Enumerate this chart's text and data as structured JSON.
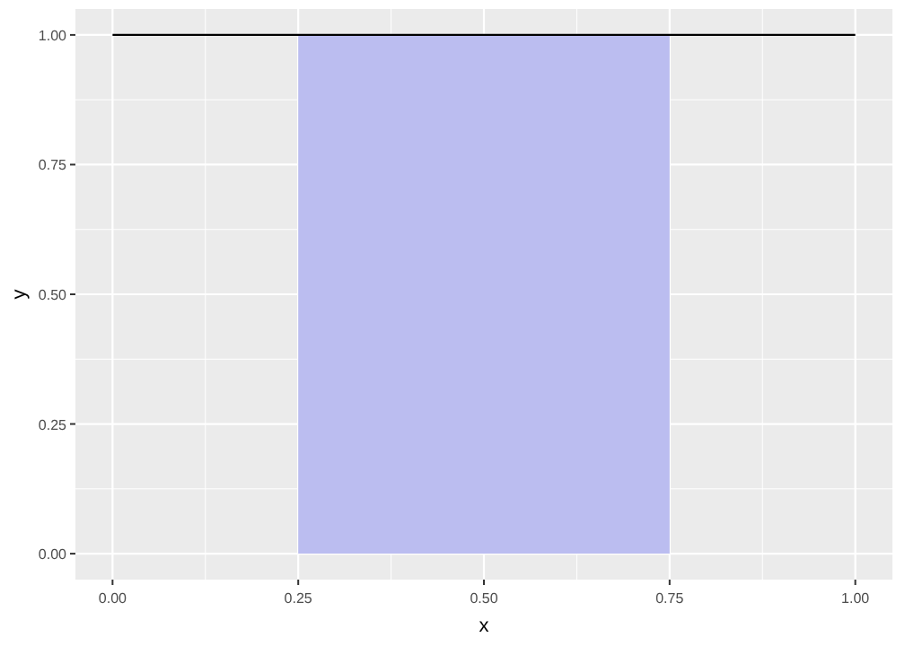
{
  "chart_data": {
    "type": "line",
    "xlabel": "x",
    "ylabel": "y",
    "xlim": [
      -0.05,
      1.05
    ],
    "ylim": [
      -0.05,
      1.05
    ],
    "xticks": [
      {
        "value": 0,
        "label": "0.00"
      },
      {
        "value": 0.25,
        "label": "0.25"
      },
      {
        "value": 0.5,
        "label": "0.50"
      },
      {
        "value": 0.75,
        "label": "0.75"
      },
      {
        "value": 1,
        "label": "1.00"
      }
    ],
    "yticks": [
      {
        "value": 0,
        "label": "0.00"
      },
      {
        "value": 0.25,
        "label": "0.25"
      },
      {
        "value": 0.5,
        "label": "0.50"
      },
      {
        "value": 0.75,
        "label": "0.75"
      },
      {
        "value": 1,
        "label": "1.00"
      }
    ],
    "grid": true,
    "series": [
      {
        "type": "area",
        "color": "#bbbdf0",
        "x": [
          0.25,
          0.75
        ],
        "values": [
          1,
          1
        ]
      },
      {
        "color": "#000000",
        "x": [
          0,
          1
        ],
        "values": [
          1,
          1
        ]
      }
    ]
  }
}
